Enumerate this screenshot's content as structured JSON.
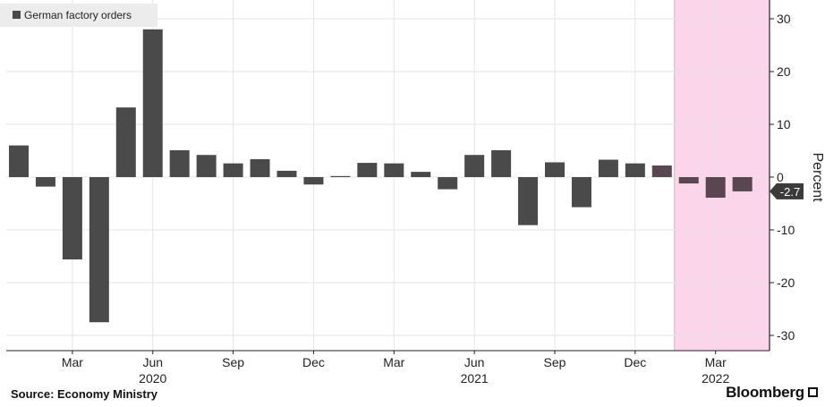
{
  "chart_data": {
    "type": "bar",
    "legend": {
      "label": "German factory orders",
      "position": "top-left"
    },
    "ylabel": "Percent",
    "ylim": [
      -32,
      33
    ],
    "yticks": [
      30,
      20,
      10,
      0,
      -10,
      -20,
      -30
    ],
    "grid": true,
    "categories": [
      "2020-01",
      "2020-02",
      "2020-03",
      "2020-04",
      "2020-05",
      "2020-06",
      "2020-07",
      "2020-08",
      "2020-09",
      "2020-10",
      "2020-11",
      "2020-12",
      "2021-01",
      "2021-02",
      "2021-03",
      "2021-04",
      "2021-05",
      "2021-06",
      "2021-07",
      "2021-08",
      "2021-09",
      "2021-10",
      "2021-11",
      "2021-12",
      "2022-01",
      "2022-02",
      "2022-03",
      "2022-04"
    ],
    "series": [
      {
        "name": "German factory orders",
        "values": [
          6.0,
          -1.8,
          -15.6,
          -27.5,
          13.2,
          28.0,
          5.1,
          4.2,
          2.6,
          3.4,
          1.2,
          -1.4,
          0.2,
          2.7,
          2.6,
          1.0,
          -2.3,
          4.2,
          5.1,
          -9.1,
          2.8,
          -5.7,
          3.3,
          2.6,
          2.2,
          -1.2,
          -3.9,
          -2.7
        ]
      }
    ],
    "last_value_label": "-2.7",
    "shaded_region": {
      "from": "2022-01",
      "to": "2022-04"
    },
    "x_labels": [
      {
        "month": "Mar",
        "year": "",
        "index": 2
      },
      {
        "month": "Jun",
        "year": "2020",
        "index": 5
      },
      {
        "month": "Sep",
        "year": "",
        "index": 8
      },
      {
        "month": "Dec",
        "year": "",
        "index": 11
      },
      {
        "month": "Mar",
        "year": "",
        "index": 14
      },
      {
        "month": "Jun",
        "year": "2021",
        "index": 17
      },
      {
        "month": "Sep",
        "year": "",
        "index": 20
      },
      {
        "month": "Dec",
        "year": "",
        "index": 23
      },
      {
        "month": "Mar",
        "year": "2022",
        "index": 26
      }
    ],
    "colors": {
      "bar": "#4a4a4a",
      "bar_highlight": "#5a4650",
      "shade": "#fbd5ea",
      "grid": "#e4e4e4",
      "tag": "#3b3b3b"
    }
  },
  "footer": {
    "source": "Source: Economy Ministry",
    "brand": "Bloomberg"
  }
}
